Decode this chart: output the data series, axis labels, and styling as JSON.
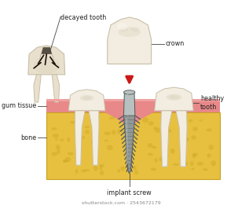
{
  "background_color": "#ffffff",
  "labels": {
    "decayed_tooth": "decayed tooth",
    "crown": "crown",
    "healthy_tooth": "healthy\ntooth",
    "gum_tissue": "gum tissue",
    "bone": "bone",
    "implant_screw": "implant screw"
  },
  "colors": {
    "tooth_white": "#f2ede0",
    "tooth_cream": "#e8e0cc",
    "tooth_highlight": "#faf8f2",
    "tooth_shadow": "#c8bfa8",
    "tooth_gray": "#d0c8b8",
    "gum_pink": "#e88888",
    "gum_light": "#f0a0a0",
    "gum_dark": "#c06060",
    "bone_yellow": "#e8c040",
    "bone_light": "#f0d060",
    "bone_bg": "#f5e080",
    "bone_spots": "#c8a020",
    "implant_gray": "#909898",
    "implant_light": "#b8c0c0",
    "implant_dark": "#505858",
    "implant_mid": "#707878",
    "decay_dark": "#1a1008",
    "decay_brown": "#3a2010",
    "background": "#ffffff",
    "line_color": "#444444",
    "arrow_red": "#cc1818"
  },
  "watermark": "shutterstock.com · 2543672179"
}
